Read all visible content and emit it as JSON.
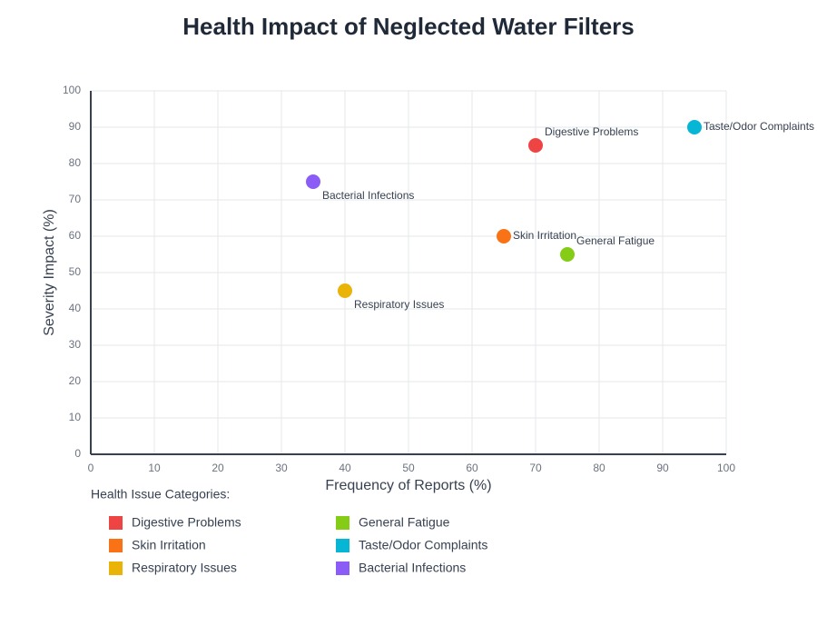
{
  "chart_data": {
    "type": "scatter",
    "title": "Health Impact of Neglected Water Filters",
    "xlabel": "Frequency of Reports (%)",
    "ylabel": "Severity Impact (%)",
    "legend_title": "Health Issue Categories:",
    "xlim": [
      0,
      100
    ],
    "ylim": [
      0,
      100
    ],
    "xticks": [
      0,
      10,
      20,
      30,
      40,
      50,
      60,
      70,
      80,
      90,
      100
    ],
    "yticks": [
      0,
      10,
      20,
      30,
      40,
      50,
      60,
      70,
      80,
      90,
      100
    ],
    "grid": true,
    "series": [
      {
        "name": "Digestive Problems",
        "color": "#ef4444",
        "x": [
          70
        ],
        "values": [
          85
        ]
      },
      {
        "name": "Skin Irritation",
        "color": "#f97316",
        "x": [
          65
        ],
        "values": [
          60
        ]
      },
      {
        "name": "Respiratory Issues",
        "color": "#eab308",
        "x": [
          40
        ],
        "values": [
          45
        ]
      },
      {
        "name": "General Fatigue",
        "color": "#84cc16",
        "x": [
          75
        ],
        "values": [
          55
        ]
      },
      {
        "name": "Taste/Odor Complaints",
        "color": "#06b6d4",
        "x": [
          95
        ],
        "values": [
          90
        ]
      },
      {
        "name": "Bacterial Infections",
        "color": "#8b5cf6",
        "x": [
          35
        ],
        "values": [
          75
        ]
      }
    ]
  }
}
